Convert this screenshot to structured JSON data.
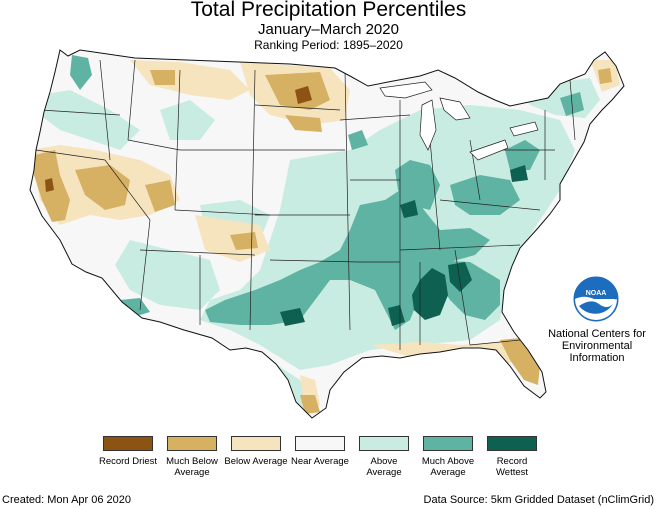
{
  "header": {
    "title": "Total Precipitation Percentiles",
    "subtitle": "January–March 2020",
    "ranking_period": "Ranking Period: 1895–2020"
  },
  "colors": {
    "record_driest": "#8c5412",
    "much_below": "#d6b063",
    "below": "#f6e4bf",
    "near": "#f7f7f7",
    "above": "#c9ece2",
    "much_above": "#5fb3a3",
    "record_wettest": "#0e6150",
    "border": "#222222",
    "noaa_blue": "#1d6dbf"
  },
  "legend": {
    "items": [
      {
        "label": "Record Driest",
        "color": "#8c5412"
      },
      {
        "label": "Much Below Average",
        "color": "#d6b063"
      },
      {
        "label": "Below Average",
        "color": "#f6e4bf"
      },
      {
        "label": "Near Average",
        "color": "#f7f7f7"
      },
      {
        "label": "Above Average",
        "color": "#c9ece2"
      },
      {
        "label": "Much Above Average",
        "color": "#5fb3a3"
      },
      {
        "label": "Record Wettest",
        "color": "#0e6150"
      }
    ]
  },
  "logo": {
    "name": "NOAA",
    "org": "National Centers for Environmental Information"
  },
  "footer": {
    "created": "Created: Mon Apr 06 2020",
    "source": "Data Source: 5km Gridded Dataset (nClimGrid)"
  }
}
